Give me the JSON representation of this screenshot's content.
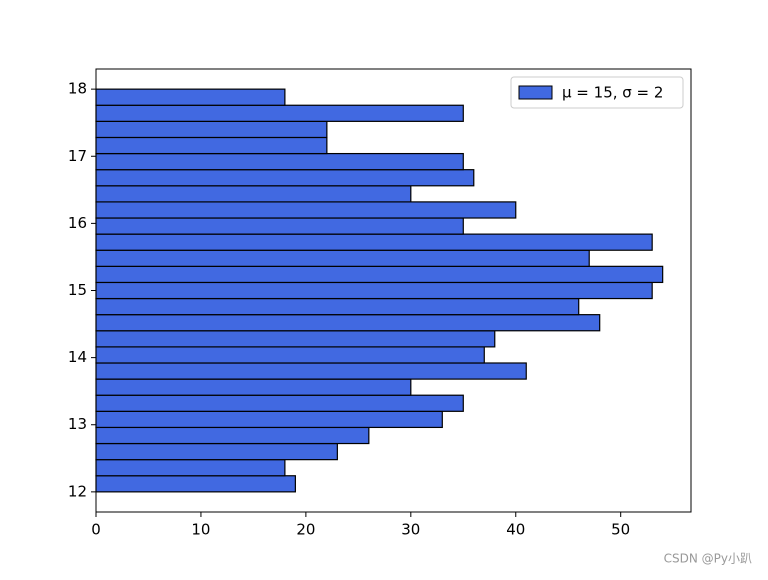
{
  "chart_data": {
    "type": "histogram",
    "orientation": "horizontal",
    "bins": [
      12,
      12.24,
      12.48,
      12.72,
      12.96,
      13.2,
      13.44,
      13.68,
      13.92,
      14.16,
      14.4,
      14.64,
      14.88,
      15.12,
      15.36,
      15.6,
      15.84,
      16.08,
      16.32,
      16.56,
      16.8,
      17.04,
      17.28,
      17.52,
      17.76,
      18
    ],
    "series": [
      {
        "name": "μ = 15, σ = 2",
        "color": "#4169e1",
        "values": [
          19,
          18,
          23,
          26,
          33,
          35,
          30,
          41,
          37,
          38,
          48,
          46,
          53,
          54,
          47,
          53,
          35,
          40,
          30,
          36,
          35,
          22,
          22,
          35,
          18
        ]
      }
    ],
    "xlim": [
      0,
      56.7
    ],
    "xticks": [
      0,
      10,
      20,
      30,
      40,
      50
    ],
    "ylim": [
      11.7,
      18.3
    ],
    "yticks": [
      12,
      13,
      14,
      15,
      16,
      17,
      18
    ],
    "legend": "upper right",
    "grid": false
  },
  "watermark": "CSDN @Py小趴"
}
